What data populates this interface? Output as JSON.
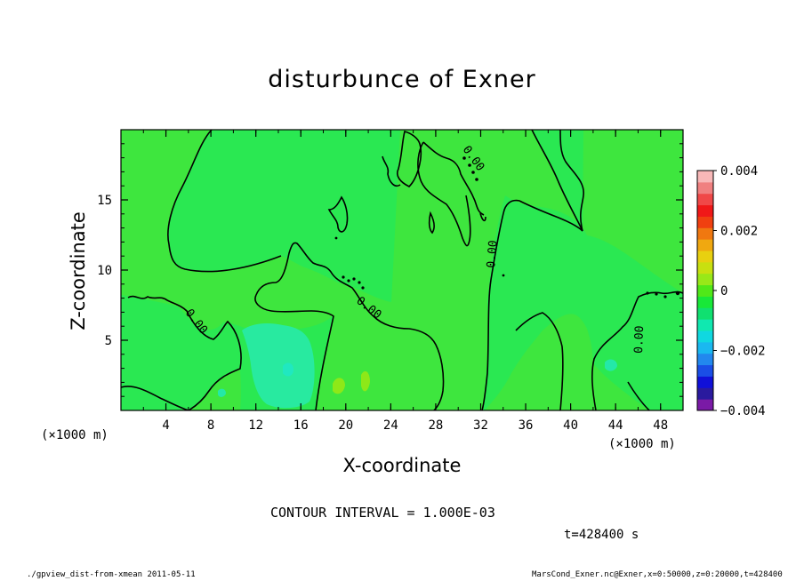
{
  "chart_data": {
    "type": "heatmap",
    "title": "disturbunce of Exner",
    "xlabel": "X-coordinate",
    "ylabel": "Z-coordinate",
    "x_unit": "(×1000 m)",
    "xlim": [
      0,
      50
    ],
    "ylim": [
      0,
      20
    ],
    "x_ticks": [
      4,
      8,
      12,
      16,
      20,
      24,
      28,
      32,
      36,
      40,
      44,
      48
    ],
    "y_ticks": [
      5,
      10,
      15
    ],
    "contour_level_label": "0.00",
    "contour_interval": "CONTOUR INTERVAL = 1.000E-03",
    "colorbar": {
      "min": -0.004,
      "max": 0.004,
      "tick_labels": [
        "0.004",
        "0.002",
        "0",
        "−0.002",
        "−0.004"
      ],
      "tick_values": [
        0.004,
        0.002,
        0,
        -0.002,
        -0.004
      ],
      "colors": [
        "#7a1aa6",
        "#2a1a9e",
        "#1010d8",
        "#1a4ee6",
        "#2288ee",
        "#1ab8f0",
        "#10d8e0",
        "#10e8b0",
        "#10e070",
        "#18e838",
        "#50e818",
        "#98e818",
        "#c8e010",
        "#e8d010",
        "#f0a810",
        "#f07810",
        "#f04010",
        "#f01818",
        "#f04848",
        "#f08080",
        "#f8b8b8"
      ],
      "n_levels": 21
    },
    "regions": [
      {
        "desc": "background (slightly positive)",
        "value": 0.0001,
        "color": "#3ee63e"
      },
      {
        "desc": "near-zero lighter band",
        "value": 0.0,
        "color": "#24e85a"
      },
      {
        "desc": "negative blob x~13-17 z~1-6",
        "value": -0.0006,
        "color": "#22e8a0"
      },
      {
        "desc": "positive bumps x~20-22 z~1-2",
        "value": 0.0005,
        "color": "#90e818"
      }
    ]
  },
  "time_label": "t=428400 s",
  "footer": {
    "left": "./gpview_dist-from-xmean  2011-05-11",
    "right": "MarsCond_Exner.nc@Exner,x=0:50000,z=0:20000,t=428400"
  }
}
